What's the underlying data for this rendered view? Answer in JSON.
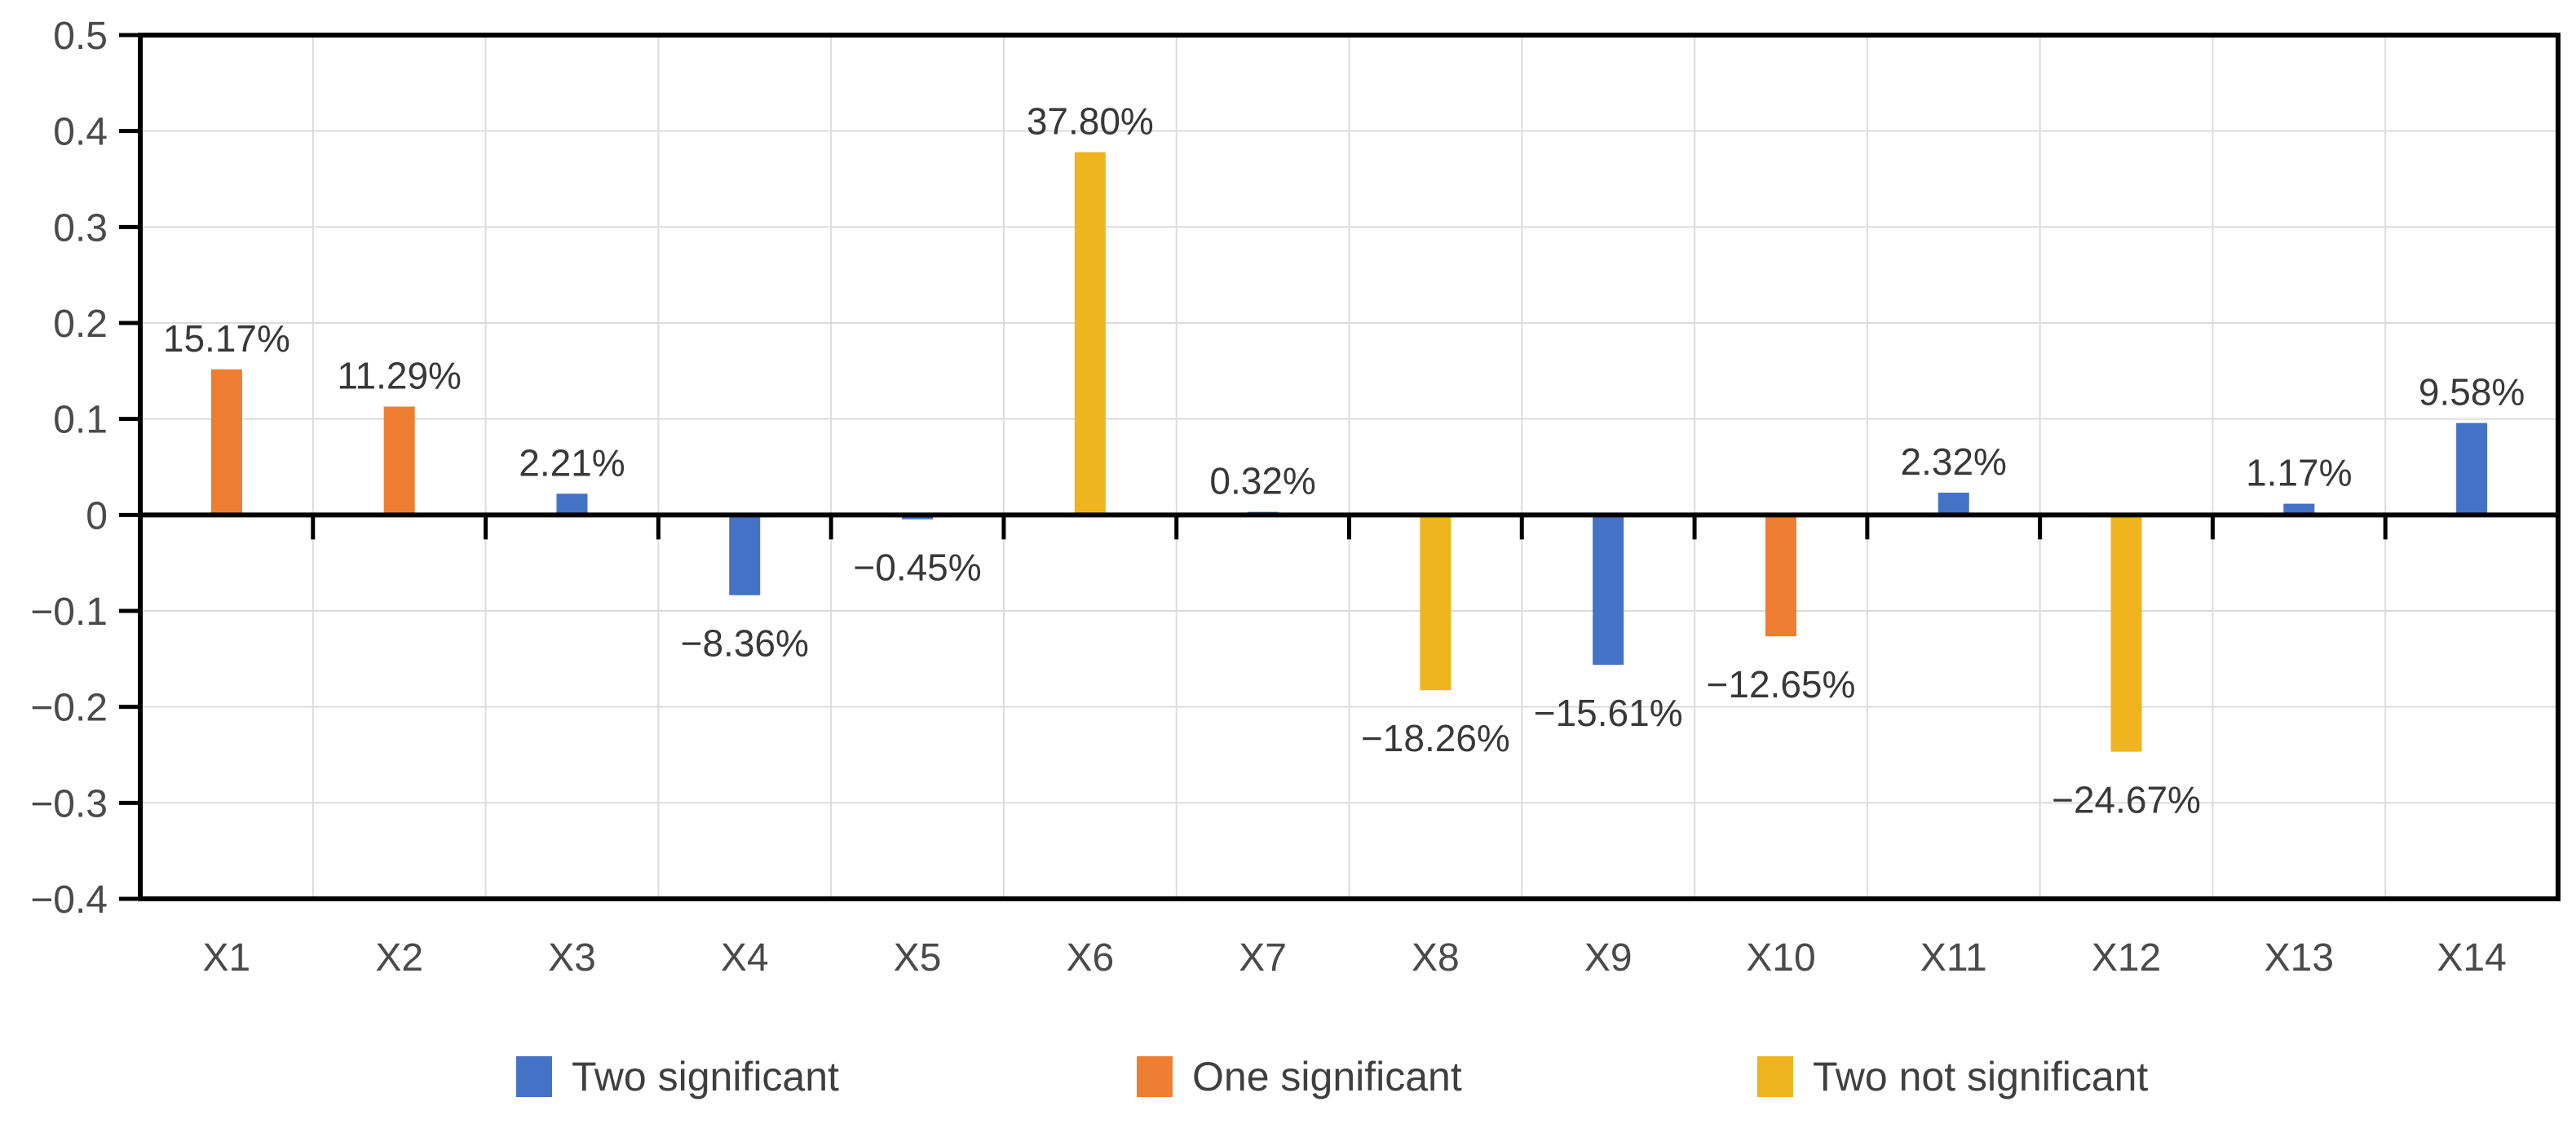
{
  "chart_data": {
    "type": "bar",
    "title": "",
    "xlabel": "",
    "ylabel": "",
    "grid": true,
    "legend_position": "bottom",
    "categories": [
      "X1",
      "X2",
      "X3",
      "X4",
      "X5",
      "X6",
      "X7",
      "X8",
      "X9",
      "X10",
      "X11",
      "X12",
      "X13",
      "X14"
    ],
    "series": [
      {
        "name": "Two significant",
        "color": "#4472C4"
      },
      {
        "name": "One significant",
        "color": "#ED7D31"
      },
      {
        "name": "Two not significant",
        "color": "#F0B41E"
      }
    ],
    "points": [
      {
        "category": "X1",
        "series": "One significant",
        "value": 0.1517,
        "label": "15.17%"
      },
      {
        "category": "X2",
        "series": "One significant",
        "value": 0.1129,
        "label": "11.29%"
      },
      {
        "category": "X3",
        "series": "Two significant",
        "value": 0.0221,
        "label": "2.21%"
      },
      {
        "category": "X4",
        "series": "Two significant",
        "value": -0.0836,
        "label": "−8.36%"
      },
      {
        "category": "X5",
        "series": "Two significant",
        "value": -0.0045,
        "label": "−0.45%"
      },
      {
        "category": "X6",
        "series": "Two not significant",
        "value": 0.378,
        "label": "37.80%"
      },
      {
        "category": "X7",
        "series": "Two significant",
        "value": 0.0032,
        "label": "0.32%"
      },
      {
        "category": "X8",
        "series": "Two not significant",
        "value": -0.1826,
        "label": "−18.26%"
      },
      {
        "category": "X9",
        "series": "Two significant",
        "value": -0.1561,
        "label": "−15.61%"
      },
      {
        "category": "X10",
        "series": "One significant",
        "value": -0.1265,
        "label": "−12.65%"
      },
      {
        "category": "X11",
        "series": "Two significant",
        "value": 0.0232,
        "label": "2.32%"
      },
      {
        "category": "X12",
        "series": "Two not significant",
        "value": -0.2467,
        "label": "−24.67%"
      },
      {
        "category": "X13",
        "series": "Two significant",
        "value": 0.0117,
        "label": "1.17%"
      },
      {
        "category": "X14",
        "series": "Two significant",
        "value": 0.0958,
        "label": "9.58%"
      }
    ],
    "y_axis": {
      "min": -0.4,
      "max": 0.5,
      "tick_step": 0.1,
      "tick_labels": [
        "0.5",
        "0.4",
        "0.3",
        "0.2",
        "0.1",
        "0",
        "−0.1",
        "−0.2",
        "−0.3",
        "−0.4"
      ]
    },
    "colors": {
      "gridline": "#DCDCDC",
      "axis": "#000000",
      "axis_text": "#4a4a4a",
      "data_label_text": "#383838"
    }
  }
}
